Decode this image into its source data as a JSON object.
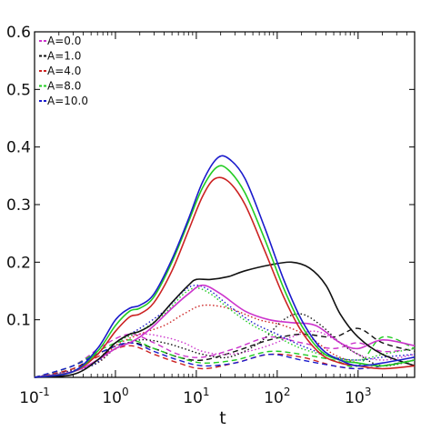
{
  "chart_data": {
    "type": "line",
    "xlabel": "t",
    "ylabel": "",
    "xscale": "log",
    "xlim": [
      0.1,
      5000
    ],
    "ylim": [
      0.0,
      0.6
    ],
    "y_ticks": [
      "0.1",
      "0.2",
      "0.3",
      "0.4",
      "0.5",
      "0.6"
    ],
    "y_tick_values": [
      0.1,
      0.2,
      0.3,
      0.4,
      0.5,
      0.6
    ],
    "x_ticks": [
      {
        "base": "10",
        "exp": "-1",
        "value": 0.1
      },
      {
        "base": "10",
        "exp": "0",
        "value": 1
      },
      {
        "base": "10",
        "exp": "1",
        "value": 10
      },
      {
        "base": "10",
        "exp": "2",
        "value": 100
      },
      {
        "base": "10",
        "exp": "3",
        "value": 1000
      }
    ],
    "grid": false,
    "legend_position": "top-left",
    "legend": [
      {
        "label": "A=0.0",
        "color": "#cc33cc"
      },
      {
        "label": "A=1.0",
        "color": "#111111"
      },
      {
        "label": "A=4.0",
        "color": "#cc2222"
      },
      {
        "label": "A=8.0",
        "color": "#22cc22"
      },
      {
        "label": "A=10.0",
        "color": "#1a1acc"
      }
    ],
    "series": [
      {
        "name": "A=0.0",
        "color": "#cc33cc",
        "style": "solid",
        "x": [
          0.1,
          0.3,
          0.6,
          1,
          1.5,
          2,
          3,
          5,
          8,
          12,
          20,
          40,
          80,
          150,
          300,
          600,
          1000,
          2000,
          5000
        ],
        "y": [
          0.0,
          0.01,
          0.03,
          0.05,
          0.06,
          0.07,
          0.09,
          0.12,
          0.145,
          0.16,
          0.145,
          0.115,
          0.1,
          0.095,
          0.09,
          0.06,
          0.05,
          0.065,
          0.055
        ]
      },
      {
        "name": "A=1.0",
        "color": "#111111",
        "style": "solid",
        "x": [
          0.1,
          0.3,
          0.6,
          1,
          1.5,
          2,
          3,
          5,
          8,
          10,
          15,
          25,
          40,
          80,
          150,
          250,
          400,
          600,
          1000,
          2000,
          5000
        ],
        "y": [
          0.0,
          0.005,
          0.03,
          0.06,
          0.075,
          0.08,
          0.095,
          0.13,
          0.16,
          0.17,
          0.17,
          0.175,
          0.185,
          0.195,
          0.2,
          0.19,
          0.16,
          0.11,
          0.07,
          0.04,
          0.02
        ]
      },
      {
        "name": "A=4.0",
        "color": "#cc2222",
        "style": "solid",
        "x": [
          0.1,
          0.3,
          0.6,
          1,
          1.5,
          2,
          3,
          5,
          8,
          12,
          17,
          25,
          40,
          70,
          120,
          200,
          350,
          600,
          1000,
          2000,
          5000
        ],
        "y": [
          0.0,
          0.01,
          0.04,
          0.08,
          0.105,
          0.11,
          0.13,
          0.185,
          0.255,
          0.315,
          0.345,
          0.34,
          0.3,
          0.22,
          0.14,
          0.08,
          0.04,
          0.025,
          0.02,
          0.015,
          0.02
        ]
      },
      {
        "name": "A=8.0",
        "color": "#22cc22",
        "style": "solid",
        "x": [
          0.1,
          0.3,
          0.6,
          1,
          1.5,
          2,
          3,
          5,
          8,
          12,
          18,
          25,
          40,
          70,
          120,
          200,
          350,
          600,
          1000,
          2000,
          5000
        ],
        "y": [
          0.0,
          0.01,
          0.045,
          0.09,
          0.115,
          0.12,
          0.14,
          0.2,
          0.27,
          0.33,
          0.365,
          0.36,
          0.32,
          0.24,
          0.155,
          0.09,
          0.045,
          0.03,
          0.025,
          0.02,
          0.03
        ]
      },
      {
        "name": "A=10.0",
        "color": "#1a1acc",
        "style": "solid",
        "x": [
          0.1,
          0.3,
          0.6,
          1,
          1.5,
          2,
          3,
          5,
          8,
          12,
          18,
          25,
          40,
          70,
          120,
          200,
          350,
          600,
          1000,
          2000,
          5000
        ],
        "y": [
          0.0,
          0.01,
          0.05,
          0.1,
          0.12,
          0.125,
          0.145,
          0.205,
          0.275,
          0.34,
          0.38,
          0.38,
          0.345,
          0.26,
          0.17,
          0.1,
          0.05,
          0.03,
          0.02,
          0.025,
          0.035
        ]
      },
      {
        "name": "A=0.0",
        "color": "#cc33cc",
        "style": "dotted",
        "x": [
          0.1,
          0.5,
          1,
          2,
          4,
          7,
          12,
          25,
          60,
          150,
          300,
          600,
          1000,
          2000,
          5000
        ],
        "y": [
          0.0,
          0.02,
          0.06,
          0.075,
          0.07,
          0.06,
          0.045,
          0.04,
          0.05,
          0.07,
          0.08,
          0.06,
          0.04,
          0.03,
          0.04
        ]
      },
      {
        "name": "A=1.0",
        "color": "#111111",
        "style": "dotted",
        "x": [
          0.1,
          0.5,
          1,
          2,
          4,
          7,
          12,
          25,
          60,
          120,
          200,
          350,
          600,
          1000,
          2000,
          5000
        ],
        "y": [
          0.0,
          0.02,
          0.05,
          0.065,
          0.06,
          0.05,
          0.04,
          0.035,
          0.06,
          0.1,
          0.11,
          0.09,
          0.06,
          0.04,
          0.02,
          0.03
        ]
      },
      {
        "name": "A=4.0",
        "color": "#cc2222",
        "style": "dotted",
        "x": [
          0.1,
          0.5,
          1,
          2,
          4,
          7,
          12,
          25,
          60,
          120,
          250,
          500,
          1000,
          2000,
          5000
        ],
        "y": [
          0.0,
          0.02,
          0.055,
          0.075,
          0.09,
          0.11,
          0.125,
          0.12,
          0.1,
          0.09,
          0.07,
          0.04,
          0.025,
          0.02,
          0.03
        ]
      },
      {
        "name": "A=8.0",
        "color": "#22cc22",
        "style": "dotted",
        "x": [
          0.1,
          0.5,
          1,
          2,
          4,
          7,
          10,
          15,
          25,
          50,
          100,
          200,
          500,
          1000,
          2000,
          5000
        ],
        "y": [
          0.0,
          0.02,
          0.06,
          0.08,
          0.11,
          0.145,
          0.155,
          0.145,
          0.12,
          0.09,
          0.07,
          0.05,
          0.035,
          0.03,
          0.04,
          0.05
        ]
      },
      {
        "name": "A=10.0",
        "color": "#1a1acc",
        "style": "dotted",
        "x": [
          0.1,
          0.5,
          1,
          2,
          4,
          7,
          10,
          15,
          25,
          50,
          100,
          200,
          500,
          1000,
          2000,
          5000
        ],
        "y": [
          0.0,
          0.02,
          0.06,
          0.085,
          0.115,
          0.15,
          0.16,
          0.15,
          0.125,
          0.095,
          0.075,
          0.055,
          0.035,
          0.03,
          0.035,
          0.04
        ]
      },
      {
        "name": "A=0.0",
        "color": "#cc33cc",
        "style": "dashed",
        "x": [
          0.1,
          0.3,
          0.7,
          1.5,
          3,
          6,
          12,
          30,
          80,
          200,
          500,
          1000,
          2000,
          5000
        ],
        "y": [
          0.0,
          0.02,
          0.055,
          0.075,
          0.06,
          0.04,
          0.035,
          0.05,
          0.07,
          0.06,
          0.05,
          0.06,
          0.045,
          0.05
        ]
      },
      {
        "name": "A=1.0",
        "color": "#111111",
        "style": "dashed",
        "x": [
          0.1,
          0.3,
          0.7,
          1.5,
          3,
          6,
          12,
          30,
          80,
          200,
          500,
          1000,
          2000,
          5000
        ],
        "y": [
          0.0,
          0.015,
          0.045,
          0.06,
          0.05,
          0.035,
          0.03,
          0.045,
          0.065,
          0.075,
          0.07,
          0.085,
          0.06,
          0.045
        ]
      },
      {
        "name": "A=4.0",
        "color": "#cc2222",
        "style": "dashed",
        "x": [
          0.1,
          0.3,
          0.7,
          1.5,
          3,
          6,
          12,
          30,
          80,
          200,
          500,
          1000,
          2000,
          5000
        ],
        "y": [
          0.0,
          0.015,
          0.04,
          0.055,
          0.04,
          0.025,
          0.015,
          0.025,
          0.04,
          0.035,
          0.02,
          0.015,
          0.02,
          0.03
        ]
      },
      {
        "name": "A=8.0",
        "color": "#22cc22",
        "style": "dashed",
        "x": [
          0.1,
          0.3,
          0.7,
          1.5,
          3,
          6,
          12,
          30,
          80,
          200,
          500,
          1000,
          2000,
          5000
        ],
        "y": [
          0.0,
          0.02,
          0.05,
          0.065,
          0.05,
          0.035,
          0.025,
          0.03,
          0.045,
          0.04,
          0.03,
          0.02,
          0.07,
          0.05
        ]
      },
      {
        "name": "A=10.0",
        "color": "#1a1acc",
        "style": "dashed",
        "x": [
          0.1,
          0.3,
          0.7,
          1.5,
          3,
          6,
          12,
          30,
          80,
          200,
          500,
          1000,
          2000,
          5000
        ],
        "y": [
          0.0,
          0.02,
          0.045,
          0.06,
          0.045,
          0.03,
          0.02,
          0.025,
          0.04,
          0.03,
          0.02,
          0.015,
          0.02,
          0.03
        ]
      }
    ]
  }
}
